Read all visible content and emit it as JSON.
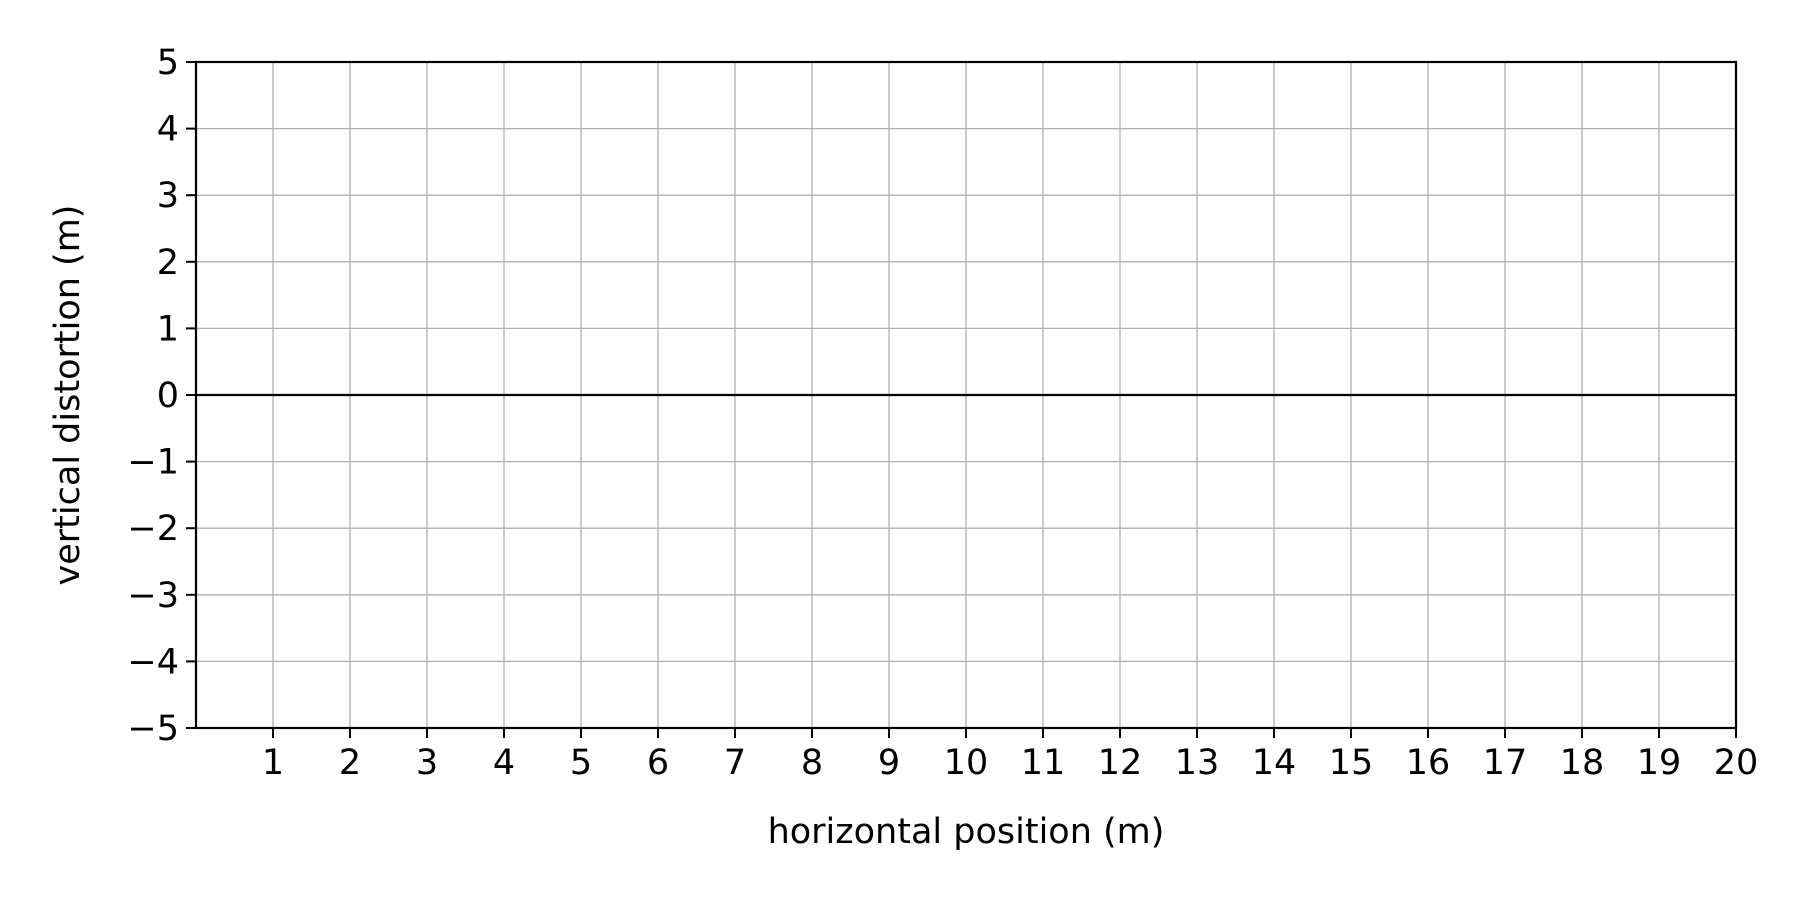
{
  "chart_data": {
    "type": "line",
    "title": "",
    "xlabel": "horizontal position (m)",
    "ylabel": "vertical distortion (m)",
    "xlim": [
      0,
      20
    ],
    "ylim": [
      -5,
      5
    ],
    "x_ticks": [
      1,
      2,
      3,
      4,
      5,
      6,
      7,
      8,
      9,
      10,
      11,
      12,
      13,
      14,
      15,
      16,
      17,
      18,
      19,
      20
    ],
    "y_ticks": [
      5,
      4,
      3,
      2,
      1,
      0,
      -1,
      -2,
      -3,
      -4,
      -5
    ],
    "x_tick_labels": [
      "1",
      "2",
      "3",
      "4",
      "5",
      "6",
      "7",
      "8",
      "9",
      "10",
      "11",
      "12",
      "13",
      "14",
      "15",
      "16",
      "17",
      "18",
      "19",
      "20"
    ],
    "y_tick_labels": [
      "5",
      "4",
      "3",
      "2",
      "1",
      "0",
      "−1",
      "−2",
      "−3",
      "−4",
      "−5"
    ],
    "grid": true,
    "reference_line": {
      "y": 0,
      "color": "#000000"
    },
    "series": [],
    "colors": {
      "grid": "#b0b0b0",
      "axes": "#000000"
    }
  }
}
